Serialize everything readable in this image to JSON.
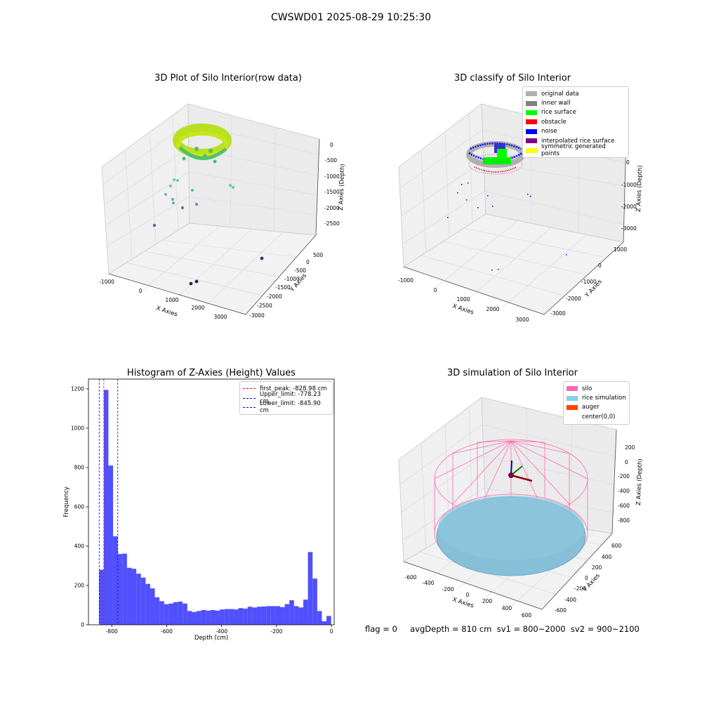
{
  "suptitle": "CWSWD01 2025-08-29 10:25:30",
  "panels": {
    "raw": {
      "title": "3D Plot of Silo Interior(row data)",
      "xlabel": "X Axies",
      "ylabel": "Y Axies",
      "zlabel": "Z Axies (Depth)",
      "xticks": [
        "-1000",
        "0",
        "1000",
        "2000",
        "3000"
      ],
      "yticks": [
        "500",
        "0",
        "-500",
        "-1000",
        "-1500",
        "-2000",
        "-2500",
        "-3000"
      ],
      "zticks": [
        "0",
        "-500",
        "-1000",
        "-1500",
        "-2000",
        "-2500"
      ]
    },
    "classify": {
      "title": "3D classify of Silo Interior",
      "xlabel": "X Axies",
      "ylabel": "Y Axies",
      "zlabel": "Z Axies (Depth)",
      "xticks": [
        "-1000",
        "0",
        "1000",
        "2000",
        "3000"
      ],
      "yticks": [
        "1000",
        "0",
        "-1000",
        "-2000",
        "-3000"
      ],
      "zticks": [
        "0",
        "-1000",
        "-2000",
        "-3000"
      ],
      "legend": [
        {
          "label": "original data",
          "color": "#b0b0b0"
        },
        {
          "label": "inner wall",
          "color": "#808080"
        },
        {
          "label": "rice surface",
          "color": "#00ff00"
        },
        {
          "label": "obstacle",
          "color": "#ff0000"
        },
        {
          "label": "noise",
          "color": "#0000ff"
        },
        {
          "label": "interpolated rice surface",
          "color": "#800080"
        },
        {
          "label": "symmetric generated points",
          "color": "#ffff00"
        }
      ]
    },
    "simulation": {
      "title": "3D simulation of Silo Interior",
      "xlabel": "X Axies",
      "ylabel": "Y Axies",
      "zlabel": "Z Axies (Depth)",
      "xticks": [
        "-600",
        "-400",
        "-200",
        "0",
        "200",
        "400",
        "600"
      ],
      "yticks": [
        "600",
        "400",
        "200",
        "0",
        "-200",
        "-400",
        "-600"
      ],
      "zticks": [
        "200",
        "0",
        "-200",
        "-400",
        "-600",
        "-800"
      ],
      "legend": [
        {
          "label": "silo",
          "color": "#ff69b4"
        },
        {
          "label": "rice simulation",
          "color": "#87ceeb"
        },
        {
          "label": "auger",
          "color": "#ff4500"
        },
        {
          "label": "center(0,0)",
          "color": ""
        }
      ]
    }
  },
  "footer": "flag = 0     avgDepth = 810 cm  sv1 = 800~2000  sv2 = 900~2100",
  "chart_data": {
    "type": "bar",
    "title": "Histogram of Z-Axies (Height) Values",
    "xlabel": "Depth (cm)",
    "ylabel": "Frequency",
    "xlim": [
      -885,
      10
    ],
    "ylim": [
      0,
      1250
    ],
    "xticks": [
      -800,
      -600,
      -400,
      -200,
      0
    ],
    "xtick_labels": [
      "-800",
      "-600",
      "-400",
      "-200",
      "0"
    ],
    "yticks": [
      0,
      200,
      400,
      600,
      800,
      1000,
      1200
    ],
    "bin_start": -846,
    "bin_width": 16.9,
    "values": [
      280,
      1195,
      810,
      450,
      360,
      362,
      290,
      285,
      260,
      240,
      208,
      185,
      140,
      120,
      105,
      108,
      115,
      118,
      108,
      70,
      65,
      70,
      75,
      72,
      75,
      72,
      78,
      80,
      80,
      78,
      85,
      82,
      92,
      88,
      92,
      93,
      95,
      95,
      95,
      90,
      105,
      125,
      95,
      88,
      128,
      370,
      235,
      70,
      18,
      45
    ],
    "bar_color": "#5050ff",
    "vlines": [
      {
        "x": -828.98,
        "color": "#ff0000",
        "label": "first_peak: -828.98 cm"
      },
      {
        "x": -778.23,
        "color": "#0000ff",
        "label": "Upper_limit: -778.23 cm"
      },
      {
        "x": -845.9,
        "color": "#0000ff",
        "label": "Lower_limit: -845.90 cm"
      }
    ],
    "legend_position": "upper right"
  }
}
